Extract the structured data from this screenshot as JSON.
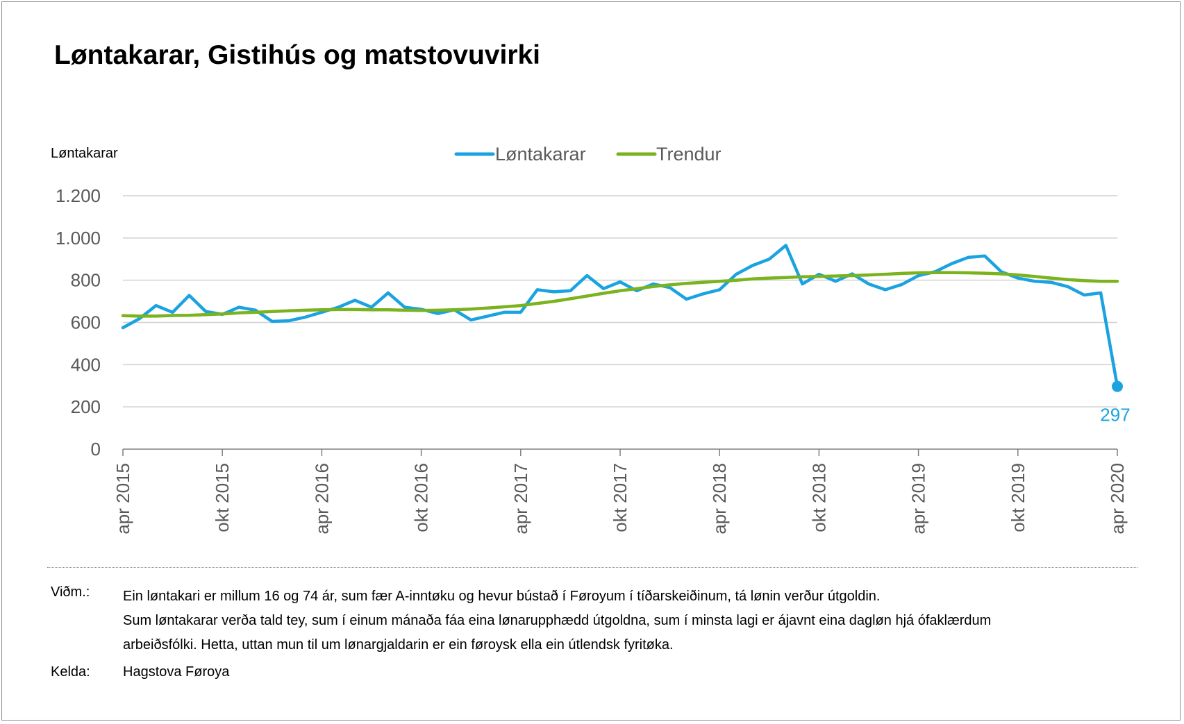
{
  "title": "Løntakarar, Gistihús og matstovuvirki",
  "colors": {
    "series": "#1aa3e0",
    "trend": "#7ab31e",
    "grid": "#d0d0d0",
    "axis": "#595959"
  },
  "chart_data": {
    "type": "line",
    "ylabel": "Løntakarar",
    "ylim": [
      0,
      1200
    ],
    "yticks": [
      0,
      200,
      400,
      600,
      800,
      1000,
      1200
    ],
    "ytick_labels": [
      "0",
      "200",
      "400",
      "600",
      "800",
      "1.000",
      "1.200"
    ],
    "x_count": 61,
    "xticks": [
      {
        "index": 0,
        "label": "apr 2015"
      },
      {
        "index": 6,
        "label": "okt 2015"
      },
      {
        "index": 12,
        "label": "apr 2016"
      },
      {
        "index": 18,
        "label": "okt 2016"
      },
      {
        "index": 24,
        "label": "apr 2017"
      },
      {
        "index": 30,
        "label": "okt 2017"
      },
      {
        "index": 36,
        "label": "apr 2018"
      },
      {
        "index": 42,
        "label": "okt 2018"
      },
      {
        "index": 48,
        "label": "apr 2019"
      },
      {
        "index": 54,
        "label": "okt 2019"
      },
      {
        "index": 60,
        "label": "apr 2020"
      }
    ],
    "series": [
      {
        "name": "Løntakarar",
        "values": [
          575,
          618,
          680,
          648,
          728,
          652,
          638,
          672,
          658,
          605,
          608,
          625,
          648,
          672,
          705,
          672,
          740,
          672,
          662,
          642,
          660,
          612,
          630,
          648,
          648,
          755,
          745,
          750,
          822,
          760,
          792,
          750,
          782,
          765,
          710,
          735,
          755,
          828,
          870,
          900,
          965,
          782,
          828,
          795,
          830,
          782,
          755,
          780,
          822,
          840,
          878,
          908,
          915,
          840,
          810,
          795,
          790,
          770,
          730,
          740,
          297
        ]
      },
      {
        "name": "Trendur",
        "values": [
          632,
          630,
          630,
          633,
          634,
          637,
          640,
          645,
          648,
          652,
          655,
          658,
          660,
          661,
          661,
          660,
          660,
          658,
          657,
          658,
          660,
          663,
          668,
          674,
          680,
          690,
          700,
          712,
          725,
          738,
          750,
          760,
          770,
          778,
          785,
          790,
          795,
          800,
          806,
          810,
          813,
          816,
          818,
          820,
          822,
          825,
          828,
          832,
          835,
          836,
          836,
          835,
          833,
          830,
          825,
          818,
          810,
          803,
          798,
          795,
          795
        ]
      }
    ],
    "annotations": [
      {
        "index": 60,
        "text": "297"
      }
    ],
    "legend_position": "top-center"
  },
  "notes": {
    "label": "Viðm.:",
    "lines": [
      "Ein løntakari er millum 16 og 74 ár, sum fær A-inntøku og hevur bústað í Føroyum í tíðarskeiðinum, tá lønin verður útgoldin.",
      "Sum løntakarar verða tald tey, sum í einum mánaða fáa eina lønarupphædd útgoldna, sum í minsta lagi er ájavnt eina dagløn hjá ófaklærdum",
      "arbeiðsfólki. Hetta, uttan mun til um lønargjaldarin er ein føroysk ella ein útlendsk fyritøka."
    ]
  },
  "source": {
    "label": "Kelda:",
    "text": "Hagstova Føroya"
  }
}
